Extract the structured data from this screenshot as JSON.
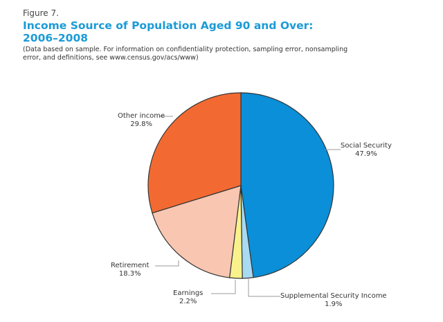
{
  "figure_label": "Figure 7.",
  "chart_data": {
    "type": "pie",
    "title": "Income Source of Population Aged 90 and Over: 2006–2008",
    "subtitle": "(Data based on sample. For information on confidentiality protection, sampling error, nonsampling error, and definitions, see www.census.gov/acs/www)",
    "start": "top",
    "direction": "clockwise",
    "slices": [
      {
        "label": "Social Security",
        "value": 47.9,
        "display": "47.9%",
        "color": "#0b8fd8"
      },
      {
        "label": "Supplemental Security Income",
        "value": 1.9,
        "display": "1.9%",
        "color": "#a8daf2"
      },
      {
        "label": "Earnings",
        "value": 2.2,
        "display": "2.2%",
        "color": "#f9f28c"
      },
      {
        "label": "Retirement",
        "value": 18.3,
        "display": "18.3%",
        "color": "#f8c6b1"
      },
      {
        "label": "Other income",
        "value": 29.8,
        "display": "29.8%",
        "color": "#f26a32"
      }
    ]
  }
}
